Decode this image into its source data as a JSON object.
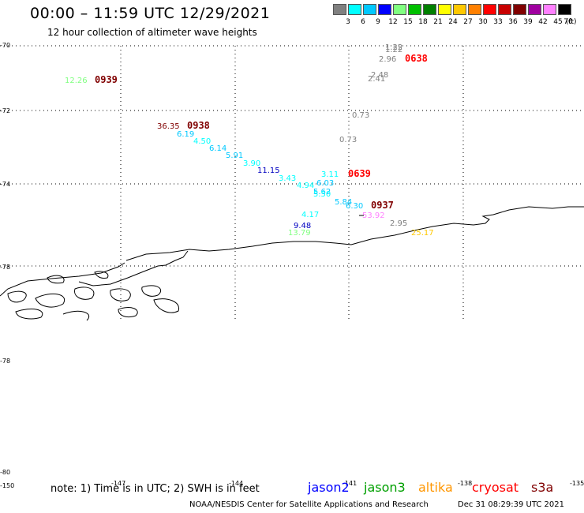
{
  "header": {
    "title": "00:00 – 11:59 UTC 12/29/2021",
    "subtitle": "12 hour collection of altimeter wave heights"
  },
  "legend": {
    "unit": "(ft)",
    "items": [
      {
        "label": "3",
        "color": "#808080"
      },
      {
        "label": "6",
        "color": "#00ffff"
      },
      {
        "label": "9",
        "color": "#00c8ff"
      },
      {
        "label": "12",
        "color": "#0000ff"
      },
      {
        "label": "15",
        "color": "#80ff80"
      },
      {
        "label": "18",
        "color": "#00c000"
      },
      {
        "label": "21",
        "color": "#008000"
      },
      {
        "label": "24",
        "color": "#ffff00"
      },
      {
        "label": "27",
        "color": "#ffc800"
      },
      {
        "label": "30",
        "color": "#ff8000"
      },
      {
        "label": "33",
        "color": "#ff0000"
      },
      {
        "label": "36",
        "color": "#c80000"
      },
      {
        "label": "39",
        "color": "#800000"
      },
      {
        "label": "42",
        "color": "#a000a0"
      },
      {
        "label": "45",
        "color": "#ff80ff"
      },
      {
        "label": "70",
        "color": "#000000"
      }
    ]
  },
  "map": {
    "lat_labels": [
      "-70",
      "-72",
      "-74",
      "-78",
      "-78",
      "-80"
    ],
    "lon_labels": [
      "-150",
      "-147",
      "-144",
      "-141",
      "-138",
      "-135"
    ],
    "wave_heights": [
      {
        "text": "1.22",
        "color": "#808080"
      },
      {
        "text": "1.22",
        "color": "#808080"
      },
      {
        "text": "2.96",
        "color": "#808080"
      },
      {
        "text": "2.48",
        "color": "#808080"
      },
      {
        "text": "2.41",
        "color": "#808080"
      },
      {
        "text": "12.26",
        "color": "#80ff80"
      },
      {
        "text": "0.73",
        "color": "#808080"
      },
      {
        "text": "0.73",
        "color": "#808080"
      },
      {
        "text": "36.35",
        "color": "#800000"
      },
      {
        "text": "6.19",
        "color": "#00c8ff"
      },
      {
        "text": "4.50",
        "color": "#00ffff"
      },
      {
        "text": "6.14",
        "color": "#00c8ff"
      },
      {
        "text": "5.91",
        "color": "#00c8ff"
      },
      {
        "text": "3.90",
        "color": "#00ffff"
      },
      {
        "text": "11.15",
        "color": "#0000c0"
      },
      {
        "text": "3.43",
        "color": "#00ffff"
      },
      {
        "text": "3.11",
        "color": "#00ffff"
      },
      {
        "text": "4.94",
        "color": "#00ffff"
      },
      {
        "text": "6.03",
        "color": "#00c8ff"
      },
      {
        "text": "5.62",
        "color": "#00c8ff"
      },
      {
        "text": "5.50",
        "color": "#00ffff"
      },
      {
        "text": "5.84",
        "color": "#00c8ff"
      },
      {
        "text": "6.30",
        "color": "#00c8ff"
      },
      {
        "text": "4.17",
        "color": "#00ffff"
      },
      {
        "text": "9.48",
        "color": "#0000c0"
      },
      {
        "text": "13.79",
        "color": "#80ff80"
      },
      {
        "text": "53.92",
        "color": "#ff80ff"
      },
      {
        "text": "2.95",
        "color": "#808080"
      },
      {
        "text": "25.17",
        "color": "#ffc800"
      }
    ],
    "pass_times": [
      {
        "text": "0638",
        "color": "#ff0000"
      },
      {
        "text": "0939",
        "color": "#800000"
      },
      {
        "text": "0938",
        "color": "#800000"
      },
      {
        "text": "0639",
        "color": "#ff0000"
      },
      {
        "text": "0937",
        "color": "#800000"
      }
    ]
  },
  "footer": {
    "note": "note: 1) Time is in UTC; 2) SWH is in feet",
    "satellites": [
      {
        "label": "jason2",
        "color": "#0000ff"
      },
      {
        "label": "jason3",
        "color": "#00a000"
      },
      {
        "label": "altika",
        "color": "#ff9600"
      },
      {
        "label": "cryosat",
        "color": "#ff0000"
      },
      {
        "label": "s3a",
        "color": "#800000"
      }
    ],
    "credit": "NOAA/NESDIS Center for Satellite Applications and Research",
    "timestamp": "Dec 31 08:29:39 UTC 2021"
  }
}
